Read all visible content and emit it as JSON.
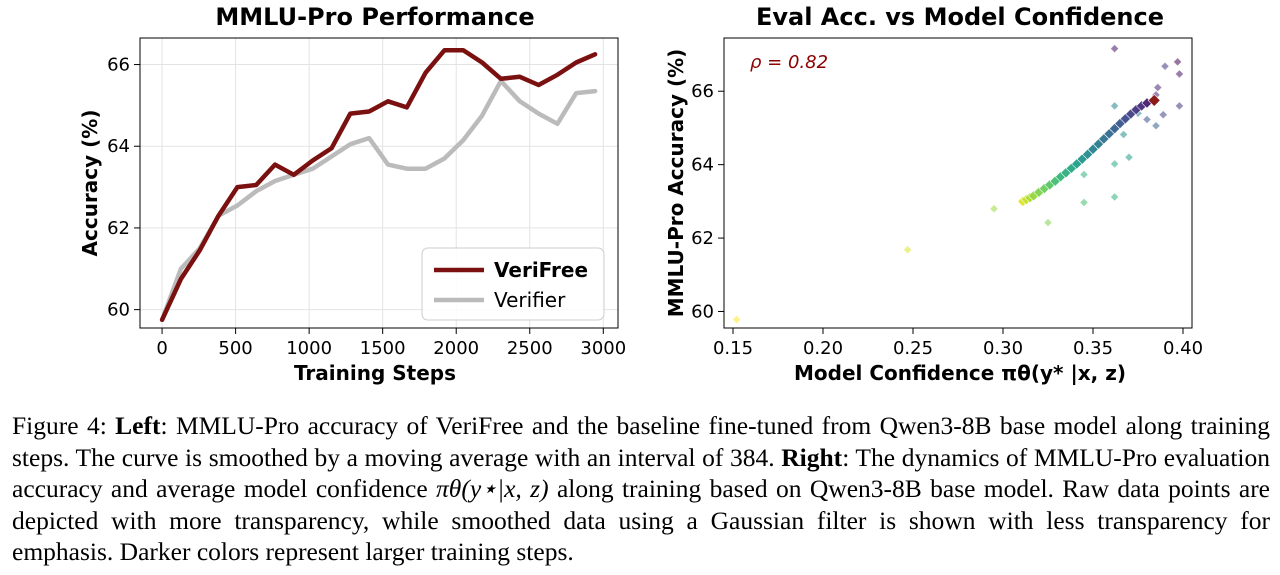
{
  "chart_data": [
    {
      "type": "line",
      "title": "MMLU-Pro Performance",
      "xlabel": "Training Steps",
      "ylabel": "Accuracy (%)",
      "xlim": [
        -150,
        3100
      ],
      "ylim": [
        59.55,
        66.65
      ],
      "xticks": [
        0,
        500,
        1000,
        1500,
        2000,
        2500,
        3000
      ],
      "yticks": [
        60,
        62,
        64,
        66
      ],
      "grid": true,
      "legend_position": "bottom-right",
      "series": [
        {
          "name": "VeriFree",
          "color": "#7b1010",
          "x": [
            0,
            128,
            256,
            384,
            512,
            640,
            768,
            896,
            1024,
            1152,
            1280,
            1408,
            1536,
            1664,
            1792,
            1920,
            2048,
            2176,
            2304,
            2432,
            2560,
            2688,
            2816,
            2944
          ],
          "y": [
            59.75,
            60.75,
            61.45,
            62.3,
            63.0,
            63.05,
            63.55,
            63.3,
            63.65,
            63.95,
            64.8,
            64.85,
            65.1,
            64.95,
            65.8,
            66.35,
            66.35,
            66.05,
            65.65,
            65.7,
            65.5,
            65.75,
            66.05,
            66.25
          ]
        },
        {
          "name": "Verifier",
          "color": "#bbbbbb",
          "x": [
            0,
            128,
            256,
            384,
            512,
            640,
            768,
            896,
            1024,
            1152,
            1280,
            1408,
            1536,
            1664,
            1792,
            1920,
            2048,
            2176,
            2304,
            2432,
            2560,
            2688,
            2816,
            2944
          ],
          "y": [
            59.75,
            61.0,
            61.5,
            62.3,
            62.55,
            62.9,
            63.15,
            63.3,
            63.45,
            63.75,
            64.05,
            64.2,
            63.55,
            63.45,
            63.45,
            63.7,
            64.15,
            64.75,
            65.6,
            65.1,
            64.8,
            64.55,
            65.3,
            65.35
          ]
        }
      ]
    },
    {
      "type": "scatter",
      "title": "Eval Acc. vs Model Confidence",
      "xlabel": "Model Confidence πθ(y* |x, z)",
      "ylabel": "MMLU-Pro Accuracy (%)",
      "xlim": [
        0.145,
        0.405
      ],
      "ylim": [
        59.55,
        67.45
      ],
      "xticks": [
        0.15,
        0.2,
        0.25,
        0.3,
        0.35,
        0.4
      ],
      "xtick_labels": [
        "0.15",
        "0.20",
        "0.25",
        "0.30",
        "0.35",
        "0.40"
      ],
      "yticks": [
        60,
        62,
        64,
        66
      ],
      "grid": false,
      "annotation": "ρ = 0.82",
      "colormap": "viridis (reversed): darker = larger training steps",
      "raw_points": {
        "x": [
          0.152,
          0.247,
          0.295,
          0.325,
          0.345,
          0.362,
          0.345,
          0.362,
          0.37,
          0.367,
          0.362,
          0.375,
          0.385,
          0.38,
          0.389,
          0.39,
          0.398,
          0.385,
          0.398,
          0.362,
          0.397,
          0.386
        ],
        "y": [
          59.78,
          61.68,
          62.8,
          62.42,
          62.97,
          63.12,
          63.73,
          64.02,
          64.2,
          64.82,
          65.6,
          65.4,
          65.06,
          65.23,
          65.36,
          66.68,
          65.6,
          65.9,
          66.47,
          67.16,
          66.8,
          66.1
        ],
        "step": [
          0.0,
          0.05,
          0.15,
          0.2,
          0.3,
          0.35,
          0.35,
          0.4,
          0.45,
          0.5,
          0.55,
          0.6,
          0.7,
          0.75,
          0.8,
          0.85,
          0.85,
          0.9,
          0.95,
          0.95,
          1.0,
          0.9
        ]
      },
      "smoothed_points": {
        "x": [
          0.311,
          0.313,
          0.315,
          0.317,
          0.32,
          0.323,
          0.326,
          0.329,
          0.332,
          0.335,
          0.338,
          0.341,
          0.344,
          0.347,
          0.35,
          0.353,
          0.356,
          0.359,
          0.362,
          0.365,
          0.368,
          0.371,
          0.374,
          0.377,
          0.38,
          0.384
        ],
        "y": [
          63.0,
          63.05,
          63.1,
          63.15,
          63.25,
          63.35,
          63.45,
          63.55,
          63.67,
          63.78,
          63.9,
          64.02,
          64.15,
          64.28,
          64.42,
          64.56,
          64.7,
          64.84,
          64.98,
          65.12,
          65.25,
          65.38,
          65.5,
          65.6,
          65.68,
          65.75
        ]
      }
    }
  ],
  "caption": {
    "figure_label": "Figure 4:",
    "left_label": "Left",
    "left_text": ": MMLU-Pro accuracy of VeriFree and the baseline fine-tuned from Qwen3-8B base model along training steps. The curve is smoothed by a moving average with an interval of 384.",
    "right_label": "Right",
    "right_text_1": ": The dynamics of MMLU-Pro evaluation accuracy and average model confidence",
    "right_math": "πθ(y⋆|x, z)",
    "right_text_2": "along training based on Qwen3-8B base model. Raw data points are depicted with more transparency, while smoothed data using a Gaussian filter is shown with less transparency for emphasis. Darker colors represent larger training steps."
  }
}
